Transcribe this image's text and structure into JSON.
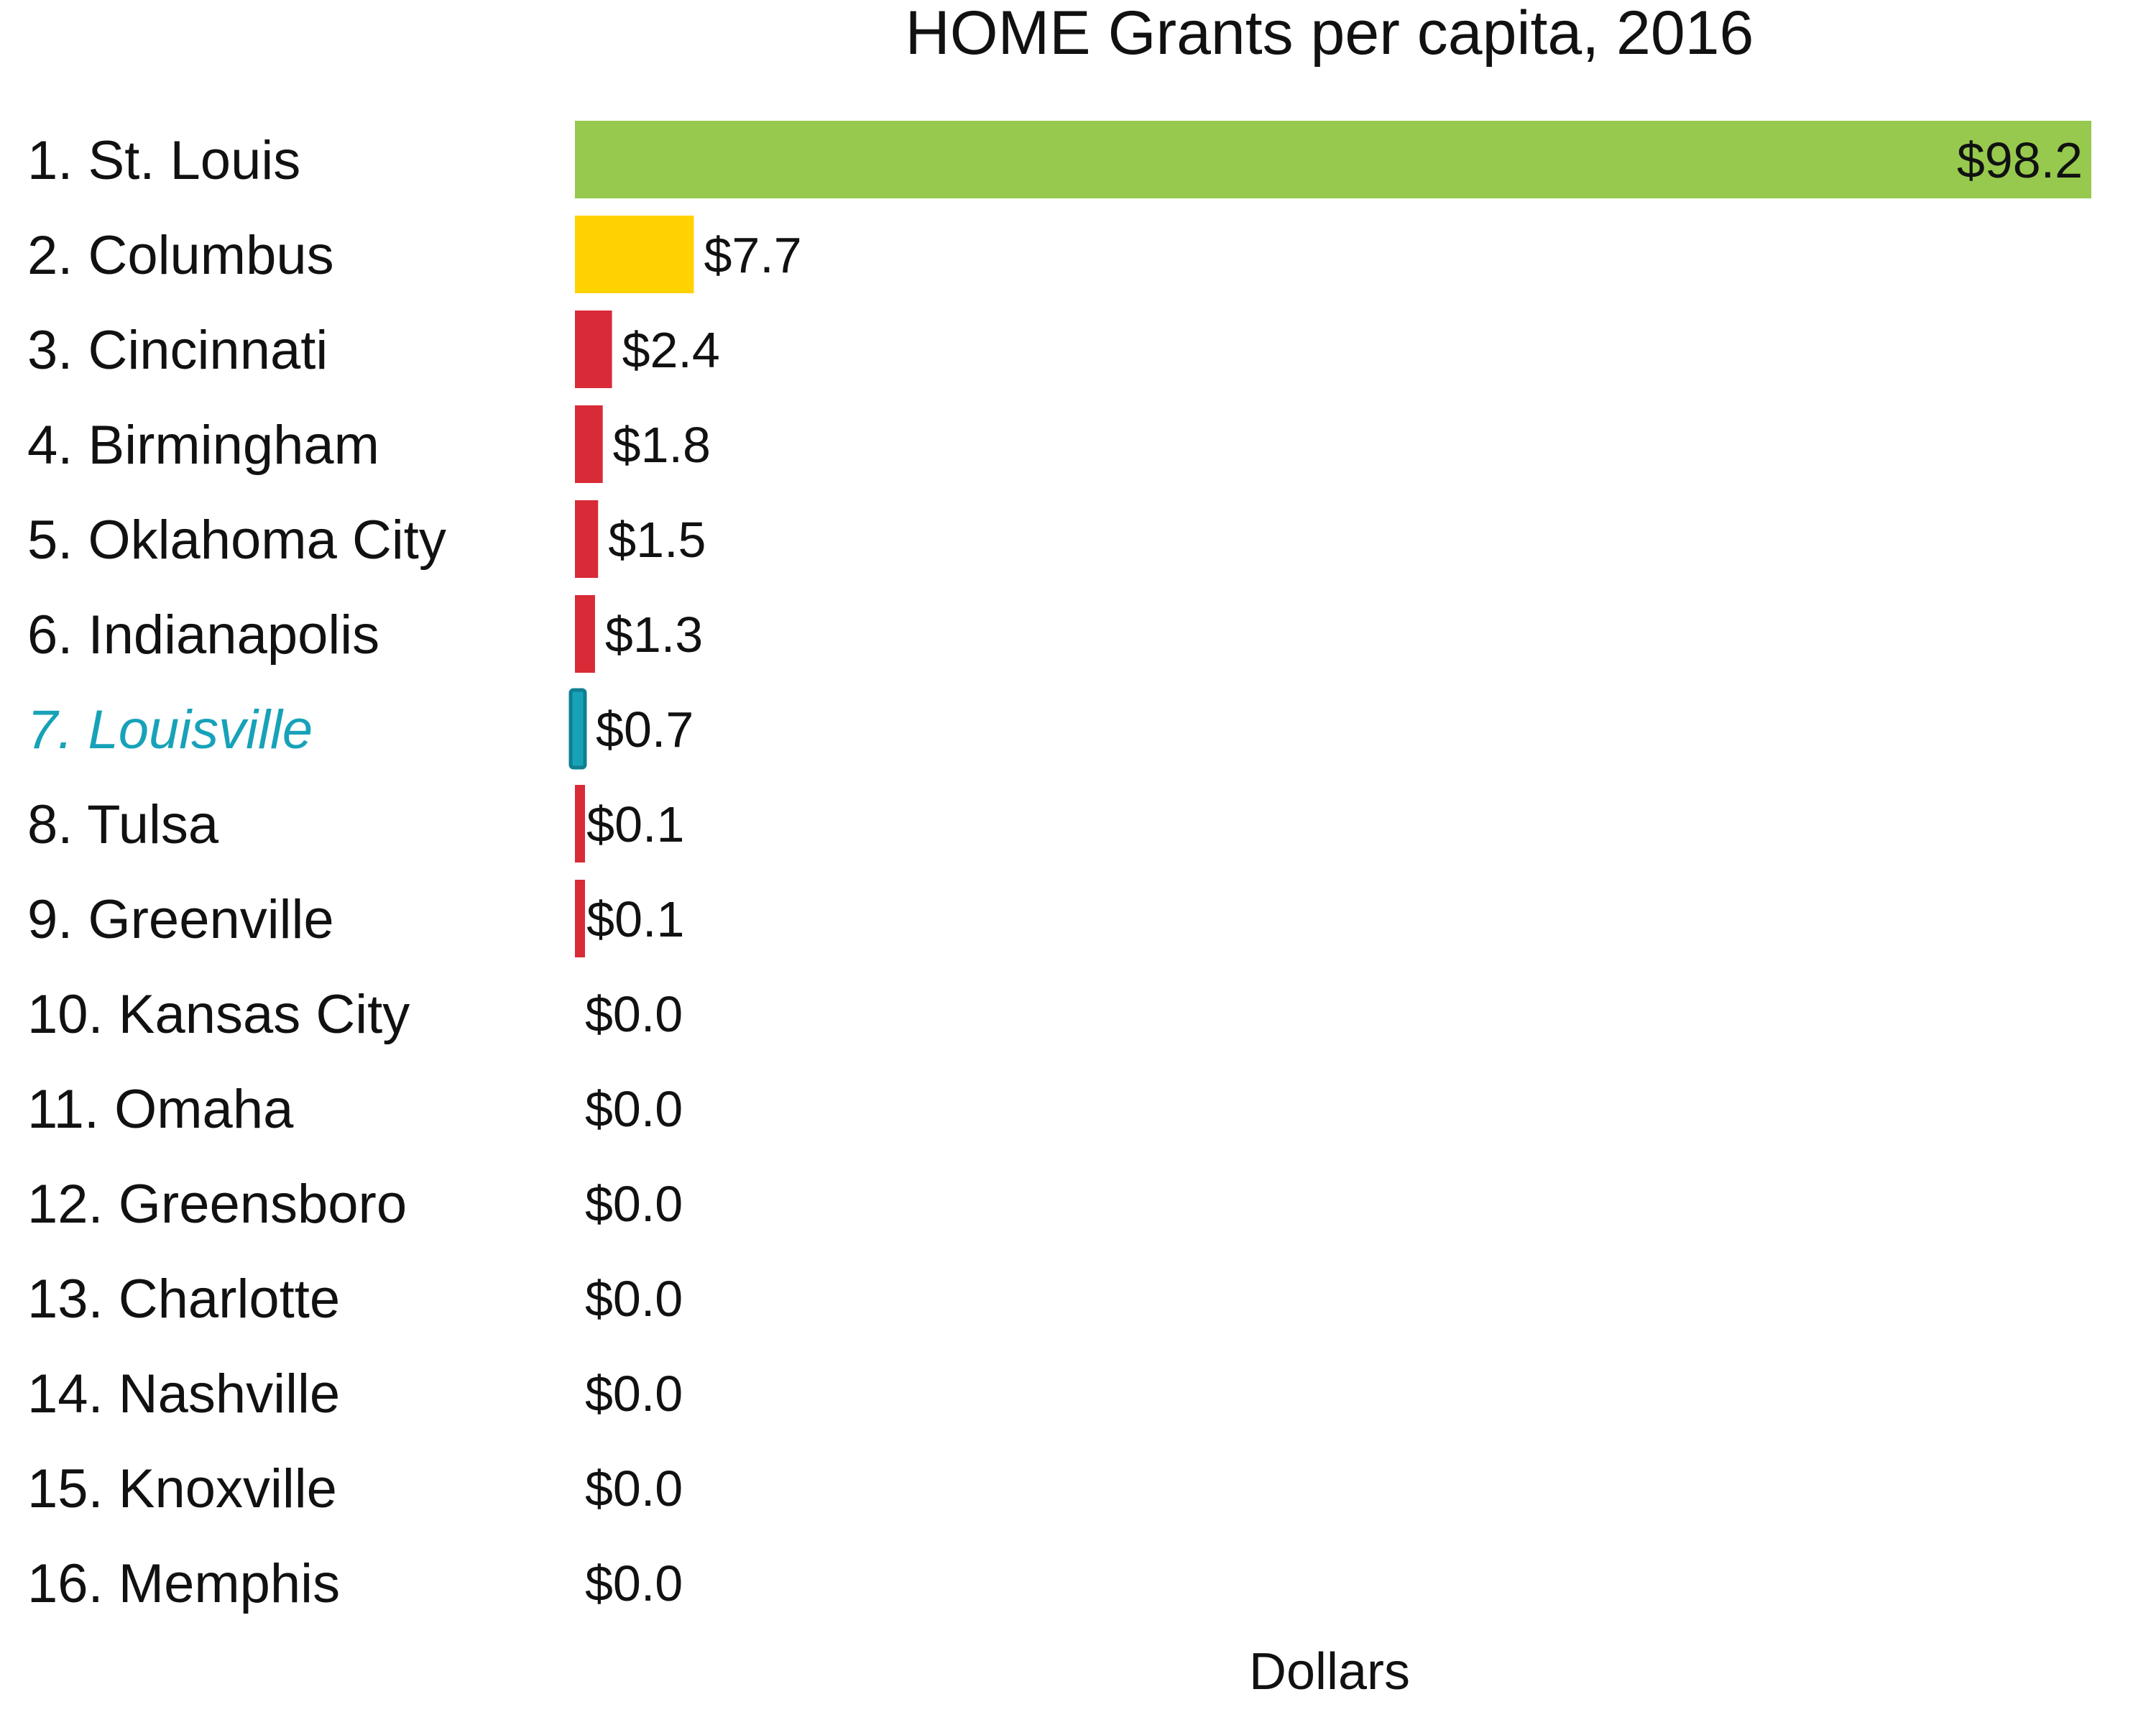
{
  "chart_data": {
    "type": "bar",
    "orientation": "horizontal",
    "title": "HOME Grants per capita, 2016",
    "xlabel": "Dollars",
    "ylabel": "",
    "xlim": [
      0,
      98.2
    ],
    "grid": false,
    "legend": "none",
    "categories": [
      "1. St. Louis",
      "2. Columbus",
      "3. Cincinnati",
      "4. Birmingham",
      "5. Oklahoma City",
      "6. Indianapolis",
      "7. Louisville",
      "8. Tulsa",
      "9. Greenville",
      "10. Kansas City",
      "11. Omaha",
      "12. Greensboro",
      "13. Charlotte",
      "14. Nashville",
      "15. Knoxville",
      "16. Memphis"
    ],
    "values": [
      98.2,
      7.7,
      2.4,
      1.8,
      1.5,
      1.3,
      0.7,
      0.1,
      0.1,
      0.0,
      0.0,
      0.0,
      0.0,
      0.0,
      0.0,
      0.0
    ],
    "value_labels": [
      "$98.2",
      "$7.7",
      "$2.4",
      "$1.8",
      "$1.5",
      "$1.3",
      "$0.7",
      "$0.1",
      "$0.1",
      "$0.0",
      "$0.0",
      "$0.0",
      "$0.0",
      "$0.0",
      "$0.0",
      "$0.0"
    ],
    "bar_colors": [
      "#96c94e",
      "#ffd200",
      "#d92a37",
      "#d92a37",
      "#d92a37",
      "#d92a37",
      "#17a2b8",
      "#d92a37",
      "#d92a37",
      "#d92a37",
      "#d92a37",
      "#d92a37",
      "#d92a37",
      "#d92a37",
      "#d92a37",
      "#d92a37"
    ],
    "highlight_category": "7. Louisville",
    "highlight_color": "#17a2b8"
  }
}
